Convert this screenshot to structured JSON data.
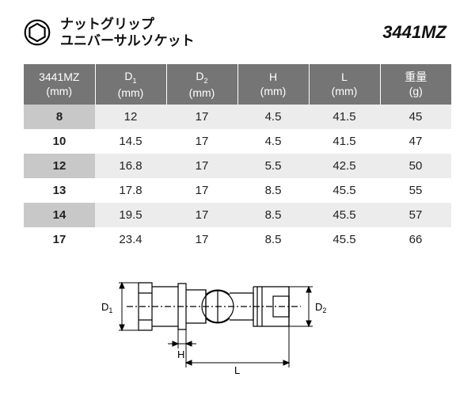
{
  "header": {
    "icon": "hex-socket-icon",
    "title_line1": "ナットグリップ",
    "title_line2": "ユニバーサルソケット",
    "model": "3441MZ"
  },
  "table": {
    "columns": [
      {
        "label": "3441MZ",
        "unit": "(mm)",
        "sub": ""
      },
      {
        "label": "D",
        "sub": "1",
        "unit": "(mm)"
      },
      {
        "label": "D",
        "sub": "2",
        "unit": "(mm)"
      },
      {
        "label": "H",
        "sub": "",
        "unit": "(mm)"
      },
      {
        "label": "L",
        "sub": "",
        "unit": "(mm)"
      },
      {
        "label": "重量",
        "sub": "",
        "unit": "(g)"
      }
    ],
    "rows": [
      [
        "8",
        "12",
        "17",
        "4.5",
        "41.5",
        "45"
      ],
      [
        "10",
        "14.5",
        "17",
        "4.5",
        "41.5",
        "47"
      ],
      [
        "12",
        "16.8",
        "17",
        "5.5",
        "42.5",
        "50"
      ],
      [
        "13",
        "17.8",
        "17",
        "8.5",
        "45.5",
        "55"
      ],
      [
        "14",
        "19.5",
        "17",
        "8.5",
        "45.5",
        "57"
      ],
      [
        "17",
        "23.4",
        "17",
        "8.5",
        "45.5",
        "66"
      ]
    ]
  },
  "diagram": {
    "labels": {
      "d1": "D",
      "d1_sub": "1",
      "d2": "D",
      "d2_sub": "2",
      "h": "H",
      "l": "L"
    },
    "colors": {
      "stroke": "#000000",
      "fill_none": "none"
    },
    "stroke_width": 1.2
  },
  "colors": {
    "header_bg": "#757575",
    "header_text": "#ffffff",
    "row_alt_first": "#c8c8c8",
    "row_alt_rest": "#ececec",
    "text": "#222222",
    "background": "#ffffff"
  },
  "typography": {
    "title_fontsize": 17,
    "model_fontsize": 22,
    "th_fontsize": 14,
    "td_fontsize": 15,
    "diagram_label_fontsize": 13
  }
}
